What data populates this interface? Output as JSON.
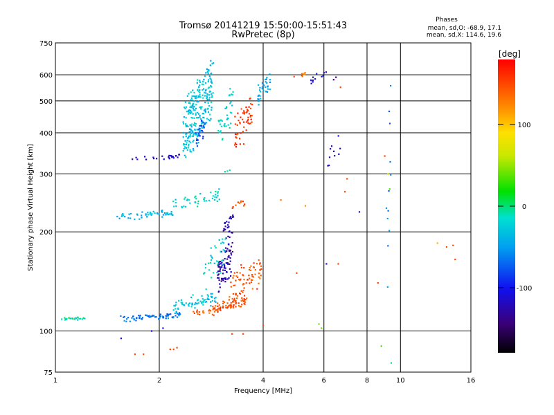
{
  "chart_data": {
    "type": "scatter",
    "title": "Tromsø 20141219 15:50:00-15:51:43",
    "subtitle": "RwPretec (8p)",
    "xlabel": "Frequency [MHz]",
    "ylabel": "Stationary phase Virtual Height [km]",
    "x_scale": "log",
    "y_scale": "log",
    "xlim": [
      1,
      16
    ],
    "ylim": [
      75,
      750
    ],
    "x_ticks": [
      "1",
      "2",
      "4",
      "6",
      "8",
      "10",
      "16"
    ],
    "y_ticks": [
      "75",
      "100",
      "200",
      "300",
      "400",
      "500",
      "600",
      "750"
    ],
    "grid": true,
    "phase_info": {
      "heading": "Phases",
      "line_o": "mean, sd,O: -68.9, 17.1",
      "line_x": "mean, sd,X: 114.6, 19.6"
    },
    "colorbar": {
      "label": "[deg]",
      "ticks": [
        "100",
        "0",
        "-100"
      ],
      "range": [
        -180,
        180
      ]
    },
    "clusters": [
      {
        "f0": 1.02,
        "f1": 1.25,
        "h0": 108,
        "h1": 110,
        "phase": -10,
        "n": 25,
        "fj": 0.02,
        "hj": 0.015
      },
      {
        "f0": 1.55,
        "f1": 2.3,
        "h0": 107,
        "h1": 114,
        "phase": -65,
        "n": 70,
        "fj": 0.01,
        "hj": 0.02
      },
      {
        "f0": 2.2,
        "f1": 2.9,
        "h0": 115,
        "h1": 130,
        "phase": -30,
        "n": 70,
        "fj": 0.02,
        "hj": 0.05
      },
      {
        "f0": 2.5,
        "f1": 3.0,
        "h0": 112,
        "h1": 118,
        "phase": 140,
        "n": 25,
        "fj": 0.01,
        "hj": 0.01
      },
      {
        "f0": 2.85,
        "f1": 3.6,
        "h0": 112,
        "h1": 128,
        "phase": 150,
        "n": 60,
        "fj": 0.01,
        "hj": 0.03
      },
      {
        "f0": 3.2,
        "f1": 3.95,
        "h0": 118,
        "h1": 170,
        "phase": 145,
        "n": 80,
        "fj": 0.015,
        "hj": 0.1
      },
      {
        "f0": 2.95,
        "f1": 3.25,
        "h0": 130,
        "h1": 200,
        "phase": -125,
        "n": 90,
        "fj": 0.015,
        "hj": 0.15
      },
      {
        "f0": 2.7,
        "f1": 3.1,
        "h0": 135,
        "h1": 195,
        "phase": -20,
        "n": 35,
        "fj": 0.015,
        "hj": 0.1
      },
      {
        "f0": 1.5,
        "f1": 2.2,
        "h0": 218,
        "h1": 232,
        "phase": -40,
        "n": 55,
        "fj": 0.015,
        "hj": 0.03
      },
      {
        "f0": 2.2,
        "f1": 3.0,
        "h0": 230,
        "h1": 268,
        "phase": -20,
        "n": 45,
        "fj": 0.02,
        "hj": 0.04
      },
      {
        "f0": 3.05,
        "f1": 3.3,
        "h0": 200,
        "h1": 230,
        "phase": -120,
        "n": 20,
        "fj": 0.01,
        "hj": 0.05
      },
      {
        "f0": 3.2,
        "f1": 3.6,
        "h0": 235,
        "h1": 250,
        "phase": 145,
        "n": 10,
        "fj": 0.02,
        "hj": 0.03
      },
      {
        "f0": 1.65,
        "f1": 2.3,
        "h0": 330,
        "h1": 345,
        "phase": -115,
        "n": 25,
        "fj": 0.015,
        "hj": 0.02
      },
      {
        "f0": 2.35,
        "f1": 2.85,
        "h0": 340,
        "h1": 650,
        "phase": -30,
        "n": 280,
        "fj": 0.02,
        "hj": 0.15
      },
      {
        "f0": 2.55,
        "f1": 2.7,
        "h0": 360,
        "h1": 450,
        "phase": -80,
        "n": 30,
        "fj": 0.02,
        "hj": 0.08
      },
      {
        "f0": 2.95,
        "f1": 3.25,
        "h0": 360,
        "h1": 560,
        "phase": -20,
        "n": 40,
        "fj": 0.02,
        "hj": 0.1
      },
      {
        "f0": 3.3,
        "f1": 3.7,
        "h0": 340,
        "h1": 540,
        "phase": 160,
        "n": 55,
        "fj": 0.02,
        "hj": 0.1
      },
      {
        "f0": 3.85,
        "f1": 4.2,
        "h0": 490,
        "h1": 620,
        "phase": -45,
        "n": 35,
        "fj": 0.015,
        "hj": 0.05
      },
      {
        "f0": 4.9,
        "f1": 5.3,
        "h0": 540,
        "h1": 640,
        "phase": 130,
        "n": 8,
        "fj": 0.02,
        "hj": 0.05
      },
      {
        "f0": 5.5,
        "f1": 6.2,
        "h0": 560,
        "h1": 640,
        "phase": -110,
        "n": 12,
        "fj": 0.02,
        "hj": 0.05
      },
      {
        "f0": 6.1,
        "f1": 6.7,
        "h0": 290,
        "h1": 400,
        "phase": -120,
        "n": 10,
        "fj": 0.03,
        "hj": 0.1
      },
      {
        "f0": 9.1,
        "f1": 9.4,
        "h0": 120,
        "h1": 560,
        "phase": -60,
        "n": 12,
        "fj": 0.01,
        "hj": 0.4
      }
    ],
    "points": [
      {
        "x": 6.4,
        "y": 580,
        "phase": -140
      },
      {
        "x": 6.5,
        "y": 590,
        "phase": -140
      },
      {
        "x": 6.7,
        "y": 550,
        "phase": 150
      },
      {
        "x": 7.6,
        "y": 230,
        "phase": -120
      },
      {
        "x": 9.0,
        "y": 340,
        "phase": 150
      },
      {
        "x": 9.2,
        "y": 300,
        "phase": 60
      },
      {
        "x": 9.3,
        "y": 270,
        "phase": 30
      },
      {
        "x": 4.5,
        "y": 250,
        "phase": 130
      },
      {
        "x": 5.3,
        "y": 240,
        "phase": 120
      },
      {
        "x": 5.0,
        "y": 150,
        "phase": 150
      },
      {
        "x": 6.1,
        "y": 160,
        "phase": -110
      },
      {
        "x": 6.6,
        "y": 160,
        "phase": 150
      },
      {
        "x": 5.8,
        "y": 105,
        "phase": 40
      },
      {
        "x": 5.9,
        "y": 102,
        "phase": 40
      },
      {
        "x": 8.8,
        "y": 90,
        "phase": 30
      },
      {
        "x": 8.6,
        "y": 140,
        "phase": 150
      },
      {
        "x": 9.4,
        "y": 80,
        "phase": -10
      },
      {
        "x": 12.8,
        "y": 185,
        "phase": 110
      },
      {
        "x": 13.6,
        "y": 180,
        "phase": 150
      },
      {
        "x": 14.2,
        "y": 182,
        "phase": 150
      },
      {
        "x": 14.4,
        "y": 165,
        "phase": 150
      },
      {
        "x": 1.7,
        "y": 85,
        "phase": 150
      },
      {
        "x": 1.8,
        "y": 85,
        "phase": 150
      },
      {
        "x": 2.15,
        "y": 88,
        "phase": 160
      },
      {
        "x": 2.2,
        "y": 88,
        "phase": 150
      },
      {
        "x": 2.25,
        "y": 89,
        "phase": 150
      },
      {
        "x": 1.55,
        "y": 95,
        "phase": -110
      },
      {
        "x": 1.9,
        "y": 100,
        "phase": -110
      },
      {
        "x": 2.05,
        "y": 102,
        "phase": -100
      },
      {
        "x": 3.25,
        "y": 98,
        "phase": 150
      },
      {
        "x": 3.5,
        "y": 98,
        "phase": 150
      },
      {
        "x": 4.0,
        "y": 104,
        "phase": 150
      },
      {
        "x": 3.1,
        "y": 305,
        "phase": -10
      },
      {
        "x": 3.2,
        "y": 308,
        "phase": -10
      },
      {
        "x": 3.15,
        "y": 306,
        "phase": -10
      },
      {
        "x": 7.0,
        "y": 290,
        "phase": 150
      },
      {
        "x": 6.9,
        "y": 265,
        "phase": 150
      }
    ]
  }
}
